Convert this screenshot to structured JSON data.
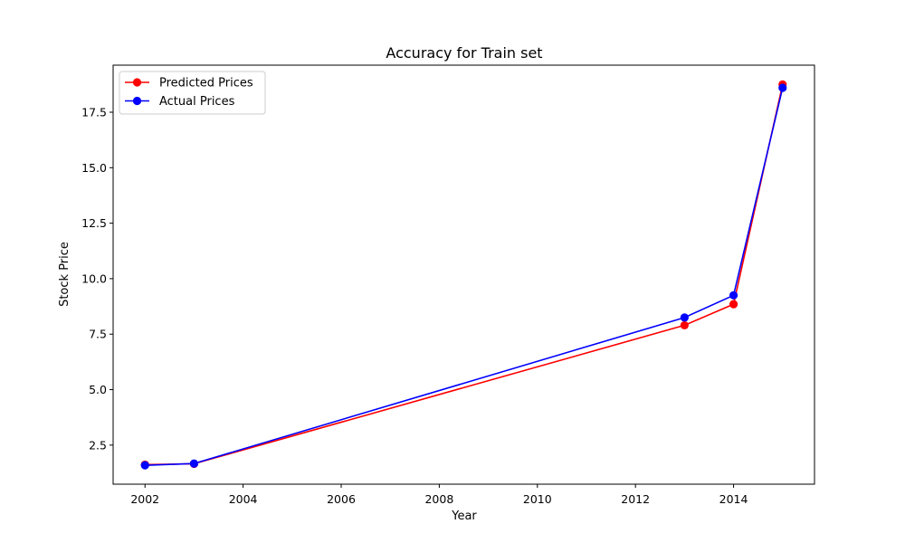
{
  "chart_data": {
    "type": "line",
    "title": "Accuracy for Train set",
    "xlabel": "Year",
    "ylabel": "Stock Price",
    "xlim": [
      2001.35,
      2015.65
    ],
    "ylim": [
      0.74,
      19.62
    ],
    "xticks": [
      2002,
      2004,
      2006,
      2008,
      2010,
      2012,
      2014
    ],
    "yticks": [
      2.5,
      5.0,
      7.5,
      10.0,
      12.5,
      15.0,
      17.5
    ],
    "xtick_labels": [
      "2002",
      "2004",
      "2006",
      "2008",
      "2010",
      "2012",
      "2014"
    ],
    "ytick_labels": [
      "2.5",
      "5.0",
      "7.5",
      "10.0",
      "12.5",
      "15.0",
      "17.5"
    ],
    "grid": false,
    "legend_position": "top-left",
    "series": [
      {
        "name": "Predicted Prices",
        "color": "#ff0000",
        "x": [
          2002,
          2003,
          2013,
          2014,
          2015
        ],
        "y": [
          1.62,
          1.66,
          7.9,
          8.85,
          18.75
        ]
      },
      {
        "name": "Actual Prices",
        "color": "#0000ff",
        "x": [
          2002,
          2003,
          2013,
          2014,
          2015
        ],
        "y": [
          1.59,
          1.67,
          8.25,
          9.25,
          18.6
        ]
      }
    ]
  }
}
